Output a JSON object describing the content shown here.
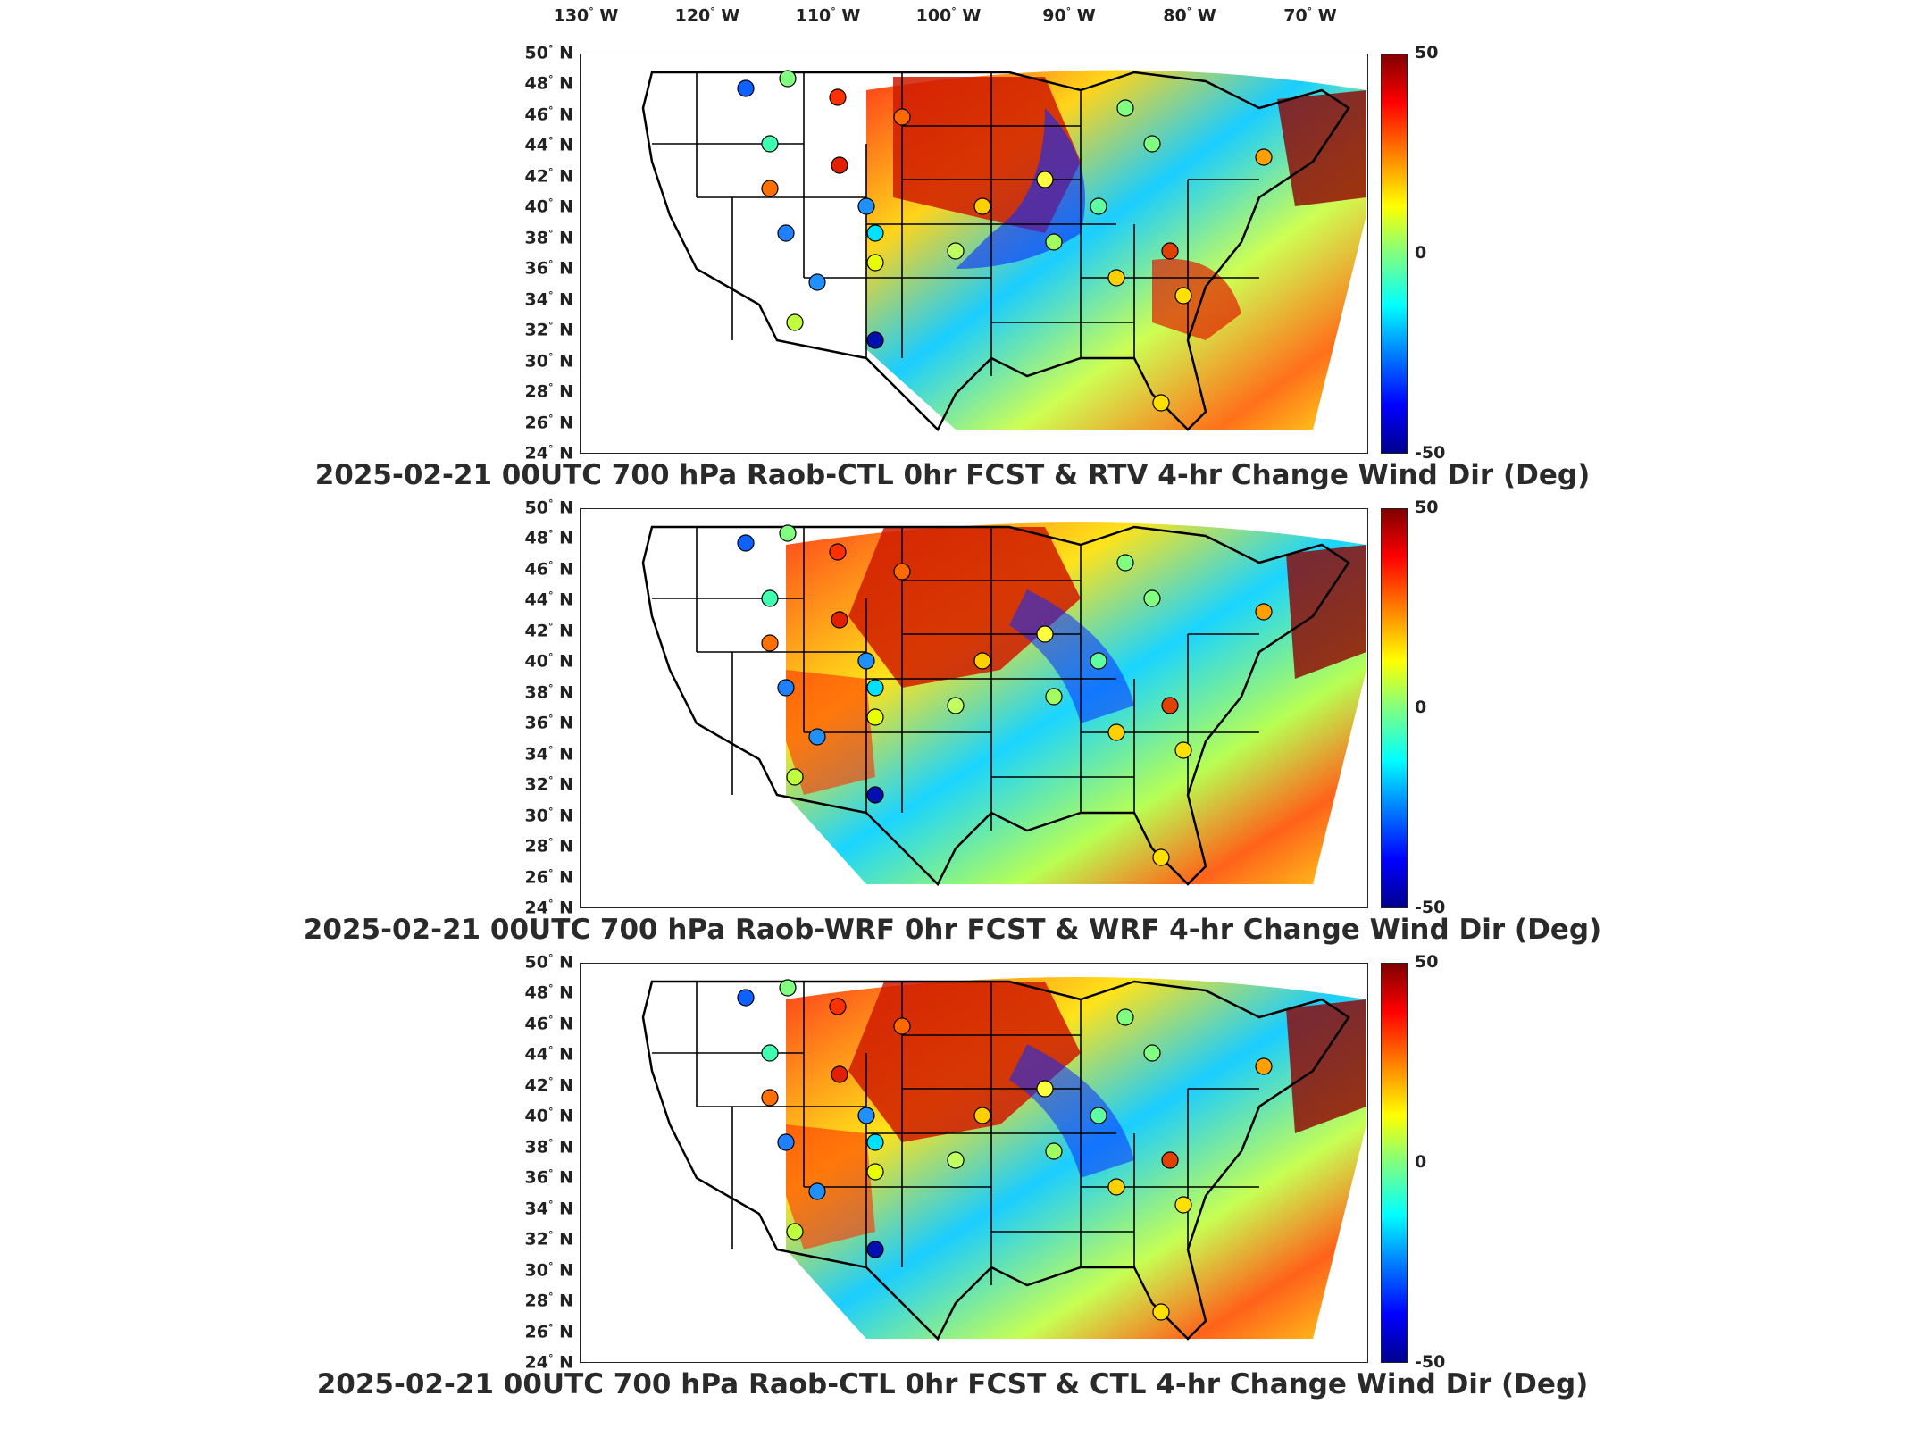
{
  "longitude_labels": [
    {
      "deg": "130",
      "hemi": "W"
    },
    {
      "deg": "120",
      "hemi": "W"
    },
    {
      "deg": "110",
      "hemi": "W"
    },
    {
      "deg": "100",
      "hemi": "W"
    },
    {
      "deg": "90",
      "hemi": "W"
    },
    {
      "deg": "80",
      "hemi": "W"
    },
    {
      "deg": "70",
      "hemi": "W"
    }
  ],
  "latitude_labels": [
    {
      "deg": "50",
      "hemi": "N"
    },
    {
      "deg": "48",
      "hemi": "N"
    },
    {
      "deg": "46",
      "hemi": "N"
    },
    {
      "deg": "44",
      "hemi": "N"
    },
    {
      "deg": "42",
      "hemi": "N"
    },
    {
      "deg": "40",
      "hemi": "N"
    },
    {
      "deg": "38",
      "hemi": "N"
    },
    {
      "deg": "36",
      "hemi": "N"
    },
    {
      "deg": "34",
      "hemi": "N"
    },
    {
      "deg": "32",
      "hemi": "N"
    },
    {
      "deg": "30",
      "hemi": "N"
    },
    {
      "deg": "28",
      "hemi": "N"
    },
    {
      "deg": "26",
      "hemi": "N"
    },
    {
      "deg": "24",
      "hemi": "N"
    }
  ],
  "colorbar": {
    "max": "50",
    "mid": "0",
    "min": "-50"
  },
  "panels": [
    {
      "title": "2025-02-21 00UTC 700 hPa Raob-CTL 0hr FCST & RTV 4-hr Change Wind Dir (Deg)"
    },
    {
      "title": "2025-02-21 00UTC 700 hPa Raob-WRF 0hr FCST & WRF 4-hr Change Wind Dir (Deg)"
    },
    {
      "title": "2025-02-21 00UTC 700 hPa Raob-CTL 0hr FCST & CTL 4-hr Change Wind Dir (Deg)"
    }
  ],
  "colors": {
    "high": "#800000",
    "mid": "#80ff80",
    "low": "#00008f",
    "map_border": "#222222"
  }
}
